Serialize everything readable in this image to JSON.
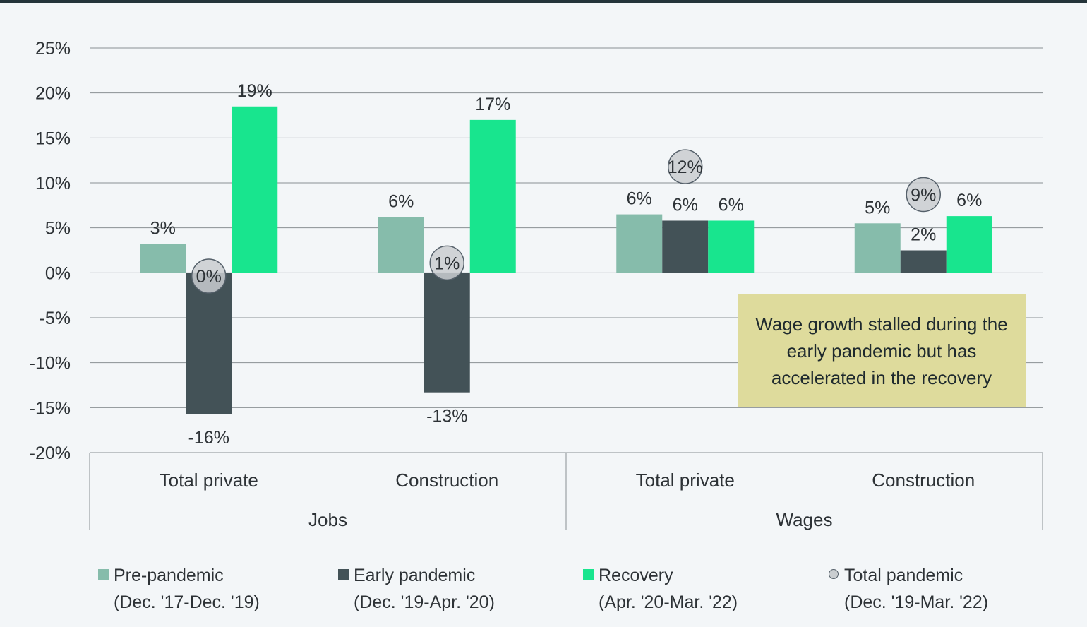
{
  "chart_data": {
    "type": "bar",
    "ylim": [
      -20,
      25
    ],
    "yticks": [
      "25%",
      "20%",
      "15%",
      "10%",
      "5%",
      "0%",
      "-5%",
      "-10%",
      "-15%",
      "-20%"
    ],
    "ytick_values": [
      25,
      20,
      15,
      10,
      5,
      0,
      -5,
      -10,
      -15,
      -20
    ],
    "grid": true,
    "categories": [
      "Total private",
      "Construction",
      "Total private",
      "Construction"
    ],
    "groups": [
      {
        "label": "Jobs",
        "categories": [
          "Total private",
          "Construction"
        ]
      },
      {
        "label": "Wages",
        "categories": [
          "Total private",
          "Construction"
        ]
      }
    ],
    "series": [
      {
        "name": "Pre-pandemic (Dec. '17-Dec. '19)",
        "color": "#86bcab",
        "values": [
          3.2,
          6.2,
          6.5,
          5.5
        ],
        "labels": [
          "3%",
          "6%",
          "6%",
          "5%"
        ]
      },
      {
        "name": "Early pandemic (Dec. '19-Apr. '20)",
        "color": "#435257",
        "values": [
          -15.7,
          -13.3,
          5.8,
          2.5
        ],
        "labels": [
          "-16%",
          "-13%",
          "6%",
          "2%"
        ]
      },
      {
        "name": "Recovery (Apr. '20-Mar. '22)",
        "color": "#18e58e",
        "values": [
          18.5,
          17.0,
          5.8,
          6.3
        ],
        "labels": [
          "19%",
          "17%",
          "6%",
          "6%"
        ]
      }
    ],
    "total_pandemic": {
      "name": "Total pandemic (Dec. '19-Mar. '22)",
      "values": [
        -0.3,
        1.1,
        11.8,
        8.7
      ],
      "labels": [
        "0%",
        "1%",
        "12%",
        "9%"
      ]
    },
    "legend_placement": "bottom",
    "annotation": "Wage growth stalled during the early pandemic but has accelerated in the recovery"
  },
  "legend": [
    {
      "line1": "Pre-pandemic",
      "line2": "(Dec. '17-Dec. '19)",
      "icon": "square",
      "color": "#86bcab"
    },
    {
      "line1": "Early pandemic",
      "line2": "(Dec. '19-Apr. '20)",
      "icon": "square",
      "color": "#435257"
    },
    {
      "line1": "Recovery",
      "line2": "(Apr. '20-Mar. '22)",
      "icon": "square",
      "color": "#18e58e"
    },
    {
      "line1": "Total pandemic",
      "line2": "(Dec. '19-Mar. '22)",
      "icon": "circle",
      "color": "#c9cdd0"
    }
  ],
  "colors": {
    "background": "#f3f6f8",
    "grid": "#8a9094",
    "text": "#2d3236",
    "callout": "#dedb9c"
  }
}
